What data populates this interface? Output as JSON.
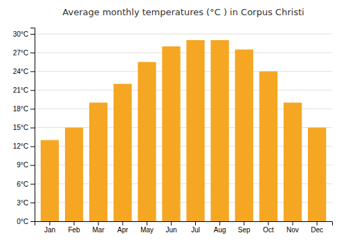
{
  "chart_data": {
    "type": "bar",
    "title": "Average monthly temperatures (°C ) in Corpus Christi",
    "categories": [
      "Jan",
      "Feb",
      "Mar",
      "Apr",
      "May",
      "Jun",
      "Jul",
      "Aug",
      "Sep",
      "Oct",
      "Nov",
      "Dec"
    ],
    "values": [
      13,
      15,
      19,
      22,
      25.5,
      28,
      29,
      29,
      27.5,
      24,
      19,
      15
    ],
    "color": "#F5A623",
    "ylim": [
      0,
      31
    ],
    "yticks": [
      {
        "value": 0,
        "label": "0°C"
      },
      {
        "value": 3,
        "label": "3°C"
      },
      {
        "value": 6,
        "label": "6°C"
      },
      {
        "value": 9,
        "label": "9°C"
      },
      {
        "value": 12,
        "label": "12°C"
      },
      {
        "value": 15,
        "label": "15°C"
      },
      {
        "value": 18,
        "label": "18°C"
      },
      {
        "value": 21,
        "label": "21°C"
      },
      {
        "value": 24,
        "label": "24°C"
      },
      {
        "value": 27,
        "label": "27°C"
      },
      {
        "value": 30,
        "label": "30°C"
      }
    ],
    "grid": true
  }
}
